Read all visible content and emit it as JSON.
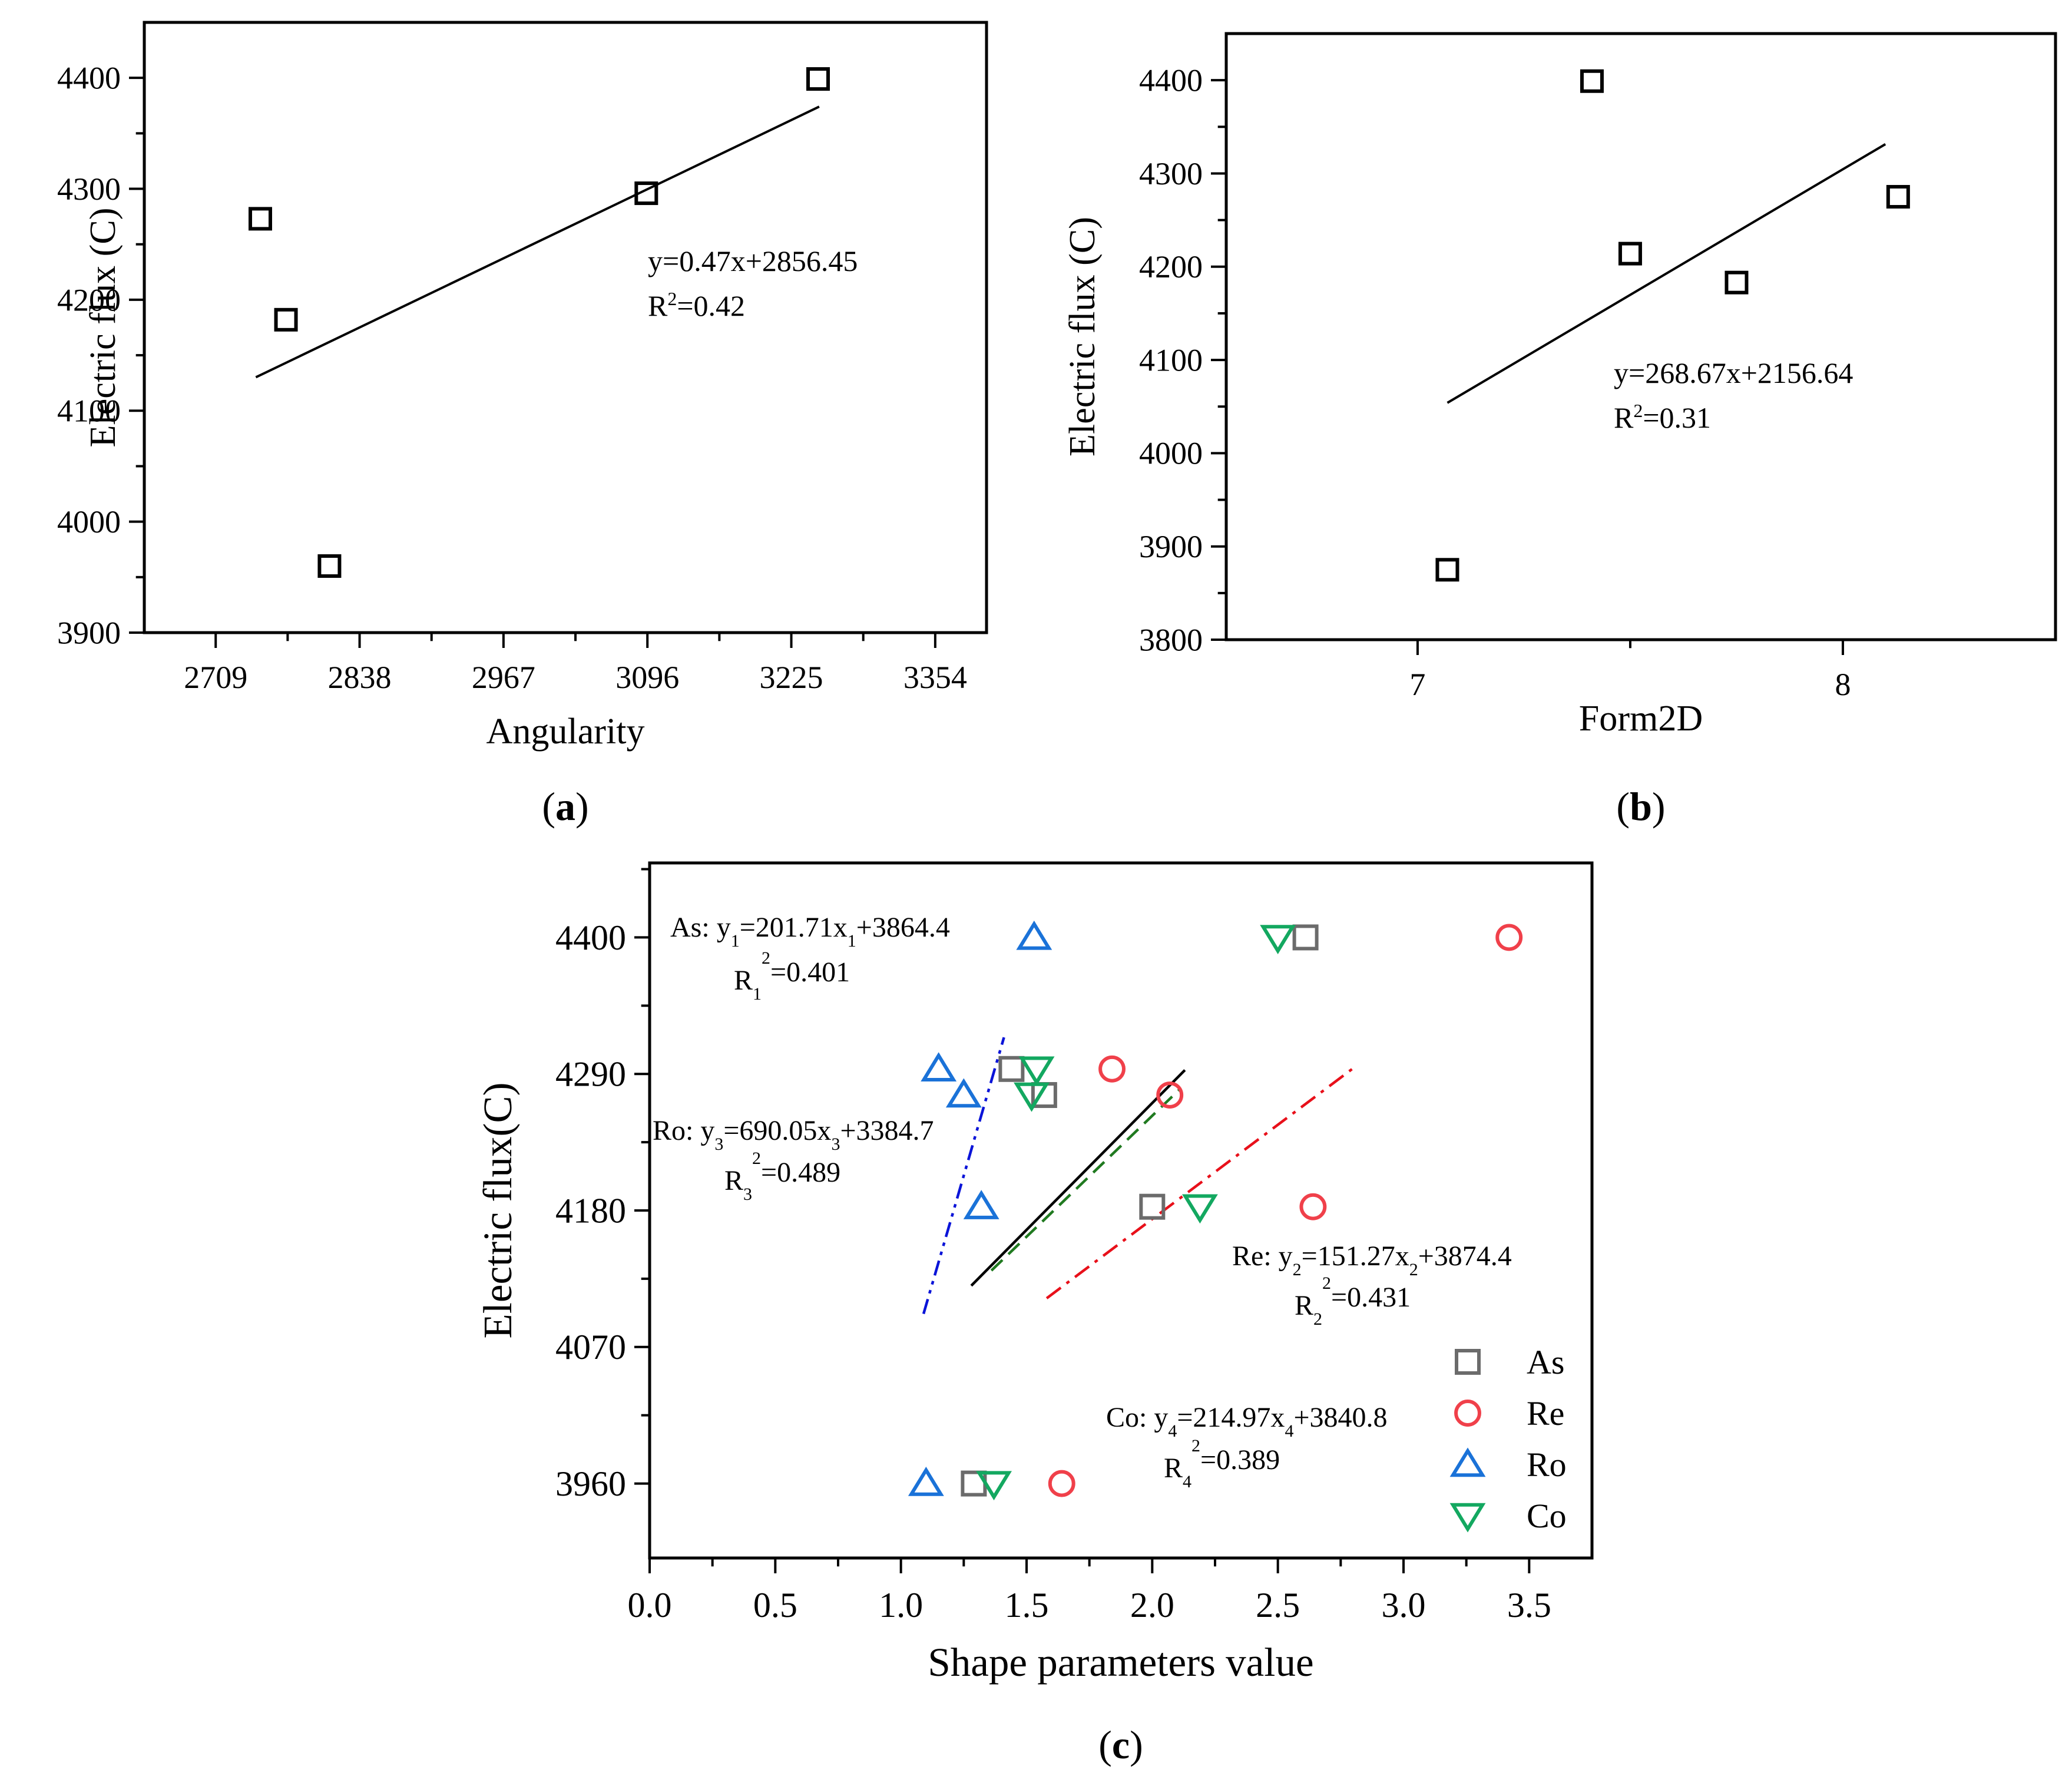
{
  "chart_data": [
    {
      "id": "a",
      "type": "scatter",
      "panel_label": "a",
      "xlabel": "Angularity",
      "ylabel": "Electric flux (C)",
      "xlim": [
        2645,
        3400
      ],
      "ylim": [
        3900,
        4450
      ],
      "x_ticks": [
        2709,
        2838,
        2967,
        3096,
        3225,
        3354
      ],
      "y_ticks": [
        3900,
        4000,
        4100,
        4200,
        4300,
        4400
      ],
      "points": [
        {
          "x": 2749,
          "y": 4273
        },
        {
          "x": 2772,
          "y": 4182
        },
        {
          "x": 2811,
          "y": 3960
        },
        {
          "x": 3095,
          "y": 4296
        },
        {
          "x": 3249,
          "y": 4399
        }
      ],
      "fit_x": [
        2745,
        3250
      ],
      "equation": "y=0.47x+2856.45",
      "r2_base": "R",
      "r2_sup": "2",
      "r2_value": "=0.42"
    },
    {
      "id": "b",
      "type": "scatter",
      "panel_label": "b",
      "xlabel": "Form2D",
      "ylabel": "Electric flux (C)",
      "xlim": [
        6.55,
        8.5
      ],
      "ylim": [
        3800,
        4450
      ],
      "x_ticks": [
        7,
        8
      ],
      "y_ticks": [
        3800,
        3900,
        4000,
        4100,
        4200,
        4300,
        4400
      ],
      "points": [
        {
          "x": 7.07,
          "y": 3875
        },
        {
          "x": 7.41,
          "y": 4399
        },
        {
          "x": 7.5,
          "y": 4214
        },
        {
          "x": 7.75,
          "y": 4183
        },
        {
          "x": 8.13,
          "y": 4275
        }
      ],
      "fit_x": [
        7.07,
        8.1
      ],
      "equation": "y=268.67x+2156.64",
      "r2_base": "R",
      "r2_sup": "2",
      "r2_value": "=0.31"
    },
    {
      "id": "c",
      "type": "scatter",
      "panel_label": "c",
      "xlabel": "Shape parameters value",
      "ylabel": "Electric flux(C)",
      "xlim": [
        0,
        3.75
      ],
      "ylim": [
        3900,
        4460
      ],
      "x_ticks": [
        0.0,
        0.5,
        1.0,
        1.5,
        2.0,
        2.5,
        3.0,
        3.5
      ],
      "x_tick_labels": [
        "0.0",
        "0.5",
        "1.0",
        "1.5",
        "2.0",
        "2.5",
        "3.0",
        "3.5"
      ],
      "y_ticks": [
        3960,
        4070,
        4180,
        4290,
        4400
      ],
      "legend_position": "bottom-right",
      "series": [
        {
          "name": "As",
          "marker": "square",
          "color": "#6b6b6b",
          "line_color": "#000000",
          "line_style": "solid",
          "points": [
            {
              "x": 1.29,
              "y": 3960
            },
            {
              "x": 1.44,
              "y": 4294
            },
            {
              "x": 1.57,
              "y": 4273
            },
            {
              "x": 2.0,
              "y": 4183
            },
            {
              "x": 2.61,
              "y": 4400
            }
          ],
          "fit_x": [
            1.28,
            2.13
          ],
          "eq_prefix": "As:",
          "eq_y": "y",
          "eq_sub": "1",
          "eq_mid": "=201.71x",
          "eq_sub2": "1",
          "eq_tail": "+3864.4",
          "r_base": "R",
          "r_sub": "1",
          "r_sup": "2",
          "r_value": "=0.401"
        },
        {
          "name": "Re",
          "marker": "circle",
          "color": "#f0404a",
          "line_color": "#e8101a",
          "line_style": "dashdot",
          "points": [
            {
              "x": 1.64,
              "y": 3960
            },
            {
              "x": 1.84,
              "y": 4294
            },
            {
              "x": 2.07,
              "y": 4273
            },
            {
              "x": 2.64,
              "y": 4183
            },
            {
              "x": 3.42,
              "y": 4400
            }
          ],
          "fit_x": [
            1.58,
            2.81
          ],
          "eq_prefix": "Re:",
          "eq_y": "y",
          "eq_sub": "2",
          "eq_mid": "=151.27x",
          "eq_sub2": "2",
          "eq_tail": "+3874.4",
          "r_base": "R",
          "r_sub": "2",
          "r_sup": "2",
          "r_value": "=0.431"
        },
        {
          "name": "Ro",
          "marker": "triangle-up",
          "color": "#1a72d8",
          "line_color": "#0a14d8",
          "line_style": "dashdotdot",
          "points": [
            {
              "x": 1.1,
              "y": 3960
            },
            {
              "x": 1.15,
              "y": 4294
            },
            {
              "x": 1.25,
              "y": 4273
            },
            {
              "x": 1.32,
              "y": 4183
            },
            {
              "x": 1.53,
              "y": 4400
            }
          ],
          "fit_x": [
            1.09,
            1.41
          ],
          "eq_prefix": "Ro:",
          "eq_y": "y",
          "eq_sub": "3",
          "eq_mid": "=690.05x",
          "eq_sub2": "3",
          "eq_tail": "+3384.7",
          "r_base": "R",
          "r_sub": "3",
          "r_sup": "2",
          "r_value": "=0.489"
        },
        {
          "name": "Co",
          "marker": "triangle-down",
          "color": "#13a860",
          "line_color": "#207a20",
          "line_style": "dashed",
          "points": [
            {
              "x": 1.37,
              "y": 3960
            },
            {
              "x": 1.52,
              "y": 4273
            },
            {
              "x": 1.54,
              "y": 4294
            },
            {
              "x": 2.19,
              "y": 4183
            },
            {
              "x": 2.5,
              "y": 4400
            }
          ],
          "fit_x": [
            1.36,
            2.11
          ],
          "eq_prefix": "Co:",
          "eq_y": "y",
          "eq_sub": "4",
          "eq_mid": "=214.97x",
          "eq_sub2": "4",
          "eq_tail": "+3840.8",
          "r_base": "R",
          "r_sub": "4",
          "r_sup": "2",
          "r_value": "=0.389"
        }
      ]
    }
  ]
}
